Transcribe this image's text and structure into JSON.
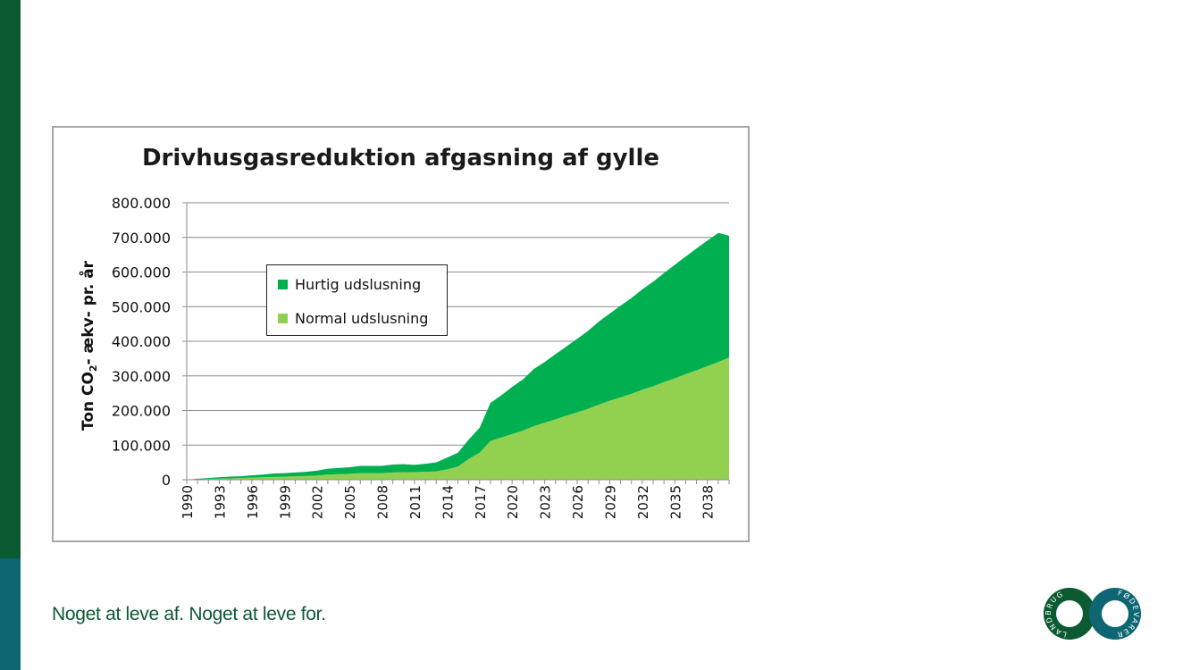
{
  "chart_data": {
    "type": "area",
    "stacked": true,
    "title": "Drivhusgasreduktion afgasning af gylle",
    "ylabel": "Ton CO2- ækv- pr. år",
    "ylabel_parts": [
      "Ton CO",
      "2",
      "- ækv- pr. år"
    ],
    "ylim": [
      0,
      800000
    ],
    "yticks": [
      0,
      100000,
      200000,
      300000,
      400000,
      500000,
      600000,
      700000,
      800000
    ],
    "ytick_labels": [
      "0",
      "100.000",
      "200.000",
      "300.000",
      "400.000",
      "500.000",
      "600.000",
      "700.000",
      "800.000"
    ],
    "xtick_labels": [
      "1990",
      "1993",
      "1996",
      "1999",
      "2002",
      "2005",
      "2008",
      "2011",
      "2014",
      "2017",
      "2020",
      "2023",
      "2026",
      "2029",
      "2032",
      "2035",
      "2038"
    ],
    "grid": true,
    "legend_position": "upper-left inside",
    "x": [
      1990,
      1991,
      1992,
      1993,
      1994,
      1995,
      1996,
      1997,
      1998,
      1999,
      2000,
      2001,
      2002,
      2003,
      2004,
      2005,
      2006,
      2007,
      2008,
      2009,
      2010,
      2011,
      2012,
      2013,
      2014,
      2015,
      2016,
      2017,
      2018,
      2019,
      2020,
      2021,
      2022,
      2023,
      2024,
      2025,
      2026,
      2027,
      2028,
      2029,
      2030,
      2031,
      2032,
      2033,
      2034,
      2035,
      2036,
      2037,
      2038,
      2039,
      2040
    ],
    "series": [
      {
        "name": "Normal udslusning",
        "color": "#92d050",
        "values": [
          0,
          1000,
          2000,
          3000,
          4000,
          5000,
          6000,
          7000,
          8000,
          9000,
          10000,
          11000,
          12000,
          15000,
          16000,
          17000,
          19000,
          19000,
          19000,
          21000,
          22000,
          22000,
          23000,
          24000,
          30000,
          38000,
          60000,
          78000,
          112000,
          122000,
          132000,
          142000,
          155000,
          165000,
          175000,
          185000,
          195000,
          205000,
          217000,
          228000,
          238000,
          248000,
          260000,
          270000,
          282000,
          293000,
          305000,
          316000,
          328000,
          340000,
          353000
        ]
      },
      {
        "name": "Hurtig udslusning",
        "color": "#00b050",
        "values": [
          0,
          2000,
          3000,
          4000,
          5000,
          5000,
          7000,
          8000,
          10000,
          10000,
          11000,
          12000,
          14000,
          17000,
          18000,
          19000,
          21000,
          21000,
          21000,
          23000,
          23000,
          21000,
          23000,
          26000,
          34000,
          40000,
          56000,
          72000,
          110000,
          122000,
          136000,
          148000,
          165000,
          175000,
          188000,
          200000,
          212000,
          225000,
          240000,
          252000,
          265000,
          277000,
          290000,
          302000,
          315000,
          328000,
          340000,
          352000,
          363000,
          373000,
          352000
        ]
      }
    ]
  },
  "footer": {
    "tagline": "Noget at leve af. Noget at leve for.",
    "logo_left_text": "LANDBRUG",
    "logo_right_text": "FØDEVARER"
  },
  "colors": {
    "sidebar_green": "#0b5a31",
    "sidebar_teal": "#0e6672",
    "tagline": "#0b5a31"
  }
}
